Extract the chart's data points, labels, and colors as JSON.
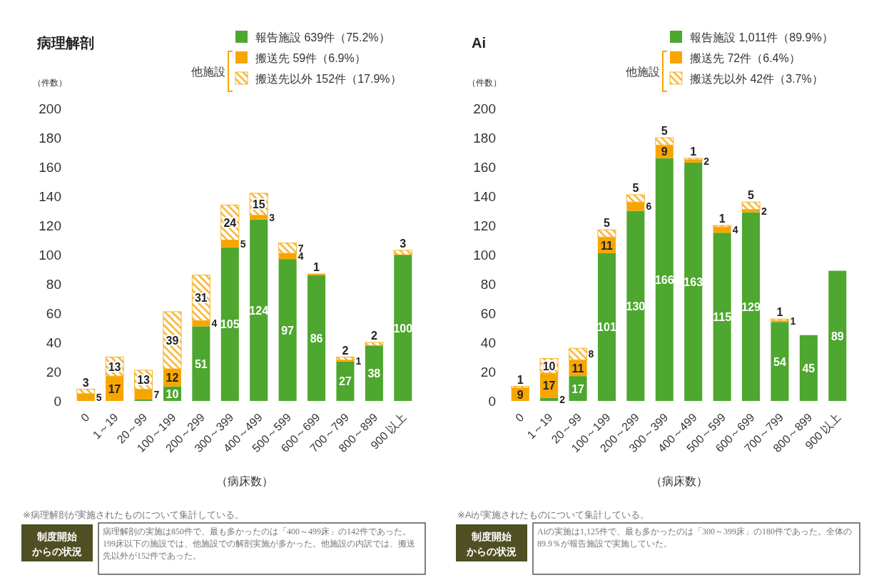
{
  "chart_data": [
    {
      "type": "bar",
      "stacked": true,
      "title": "病理解剖",
      "ylabel": "（件数）",
      "xlabel": "（病床数）",
      "legend": "top right",
      "grid": false,
      "categories": [
        "0",
        "1～19",
        "20～99",
        "100～199",
        "200～299",
        "300～399",
        "400～499",
        "500～599",
        "600～699",
        "700～799",
        "800～899",
        "900 以上"
      ],
      "ylim": [
        0,
        200
      ],
      "yticks": [
        0,
        20,
        40,
        60,
        80,
        100,
        120,
        140,
        160,
        180,
        200
      ],
      "series": [
        {
          "name": "報告施設 639件（75.2%）",
          "color": "#4ea72e",
          "values": [
            0,
            0,
            1,
            10,
            51,
            105,
            124,
            97,
            86,
            27,
            38,
            100
          ],
          "value_labels": [
            null,
            null,
            null,
            "10",
            "51",
            "105",
            "124",
            "97",
            "86",
            "27",
            "38",
            "100"
          ]
        },
        {
          "name": "搬送先 59件（6.9%）",
          "color": "#f7a600",
          "values": [
            5,
            17,
            7,
            12,
            4,
            5,
            3,
            4,
            1,
            1,
            0,
            0
          ],
          "value_labels": [
            "5",
            "17",
            "7",
            "12",
            "4",
            "5",
            "3",
            "4",
            "1",
            "1",
            null,
            null
          ]
        },
        {
          "name": "搬送先以外 152件（17.9%）",
          "color": "#f7b32b",
          "values": [
            3,
            13,
            13,
            39,
            31,
            24,
            15,
            7,
            0,
            2,
            2,
            3
          ],
          "value_labels": [
            "3",
            "13",
            "13",
            "39",
            "31",
            "24",
            "15",
            "7",
            null,
            "2",
            "2",
            "3"
          ]
        }
      ],
      "annotations": [
        "他施設",
        "※病理解剖が実施されたものについて集計している。",
        "制度開始からの状況",
        "病理解剖の実施は850件で、最も多かったのは「400～499床」の142件であった。199床以下の施設では、他施設での解剖実施が多かった。他施設の内訳では、搬送先以外が152件であった。"
      ]
    },
    {
      "type": "bar",
      "stacked": true,
      "title": "Ai",
      "ylabel": "（件数）",
      "xlabel": "（病床数）",
      "legend": "top right",
      "grid": false,
      "categories": [
        "0",
        "1～19",
        "20～99",
        "100～199",
        "200～299",
        "300～399",
        "400～499",
        "500～599",
        "600～699",
        "700～799",
        "800～899",
        "900 以上"
      ],
      "ylim": [
        0,
        200
      ],
      "yticks": [
        0,
        20,
        40,
        60,
        80,
        100,
        120,
        140,
        160,
        180,
        200
      ],
      "series": [
        {
          "name": "報告施設 1,011件（89.9%）",
          "color": "#4ea72e",
          "values": [
            0,
            2,
            17,
            101,
            130,
            166,
            163,
            115,
            129,
            54,
            45,
            89
          ],
          "value_labels": [
            null,
            "2",
            "17",
            "101",
            "130",
            "166",
            "163",
            "115",
            "129",
            "54",
            "45",
            "89"
          ]
        },
        {
          "name": "搬送先 72件（6.4%）",
          "color": "#f7a600",
          "values": [
            9,
            17,
            11,
            11,
            6,
            9,
            2,
            4,
            2,
            1,
            0,
            0
          ],
          "value_labels": [
            "9",
            "17",
            "11",
            "11",
            "6",
            "9",
            "2",
            "4",
            "2",
            "1",
            null,
            null
          ]
        },
        {
          "name": "搬送先以外 42件（3.7%）",
          "color": "#f7b32b",
          "values": [
            1,
            10,
            8,
            5,
            5,
            5,
            1,
            1,
            5,
            1,
            0,
            0
          ],
          "value_labels": [
            "1",
            "10",
            "8",
            "5",
            "5",
            "5",
            "1",
            "1",
            "5",
            "1",
            null,
            null
          ]
        }
      ],
      "annotations": [
        "他施設",
        "※Aiが実施されたものについて集計している。",
        "制度開始からの状況",
        "Aiの実施は1,125件で、最も多かったのは「300～399床」の180件であった。全体の89.9％が報告施設で実施していた。"
      ]
    }
  ]
}
